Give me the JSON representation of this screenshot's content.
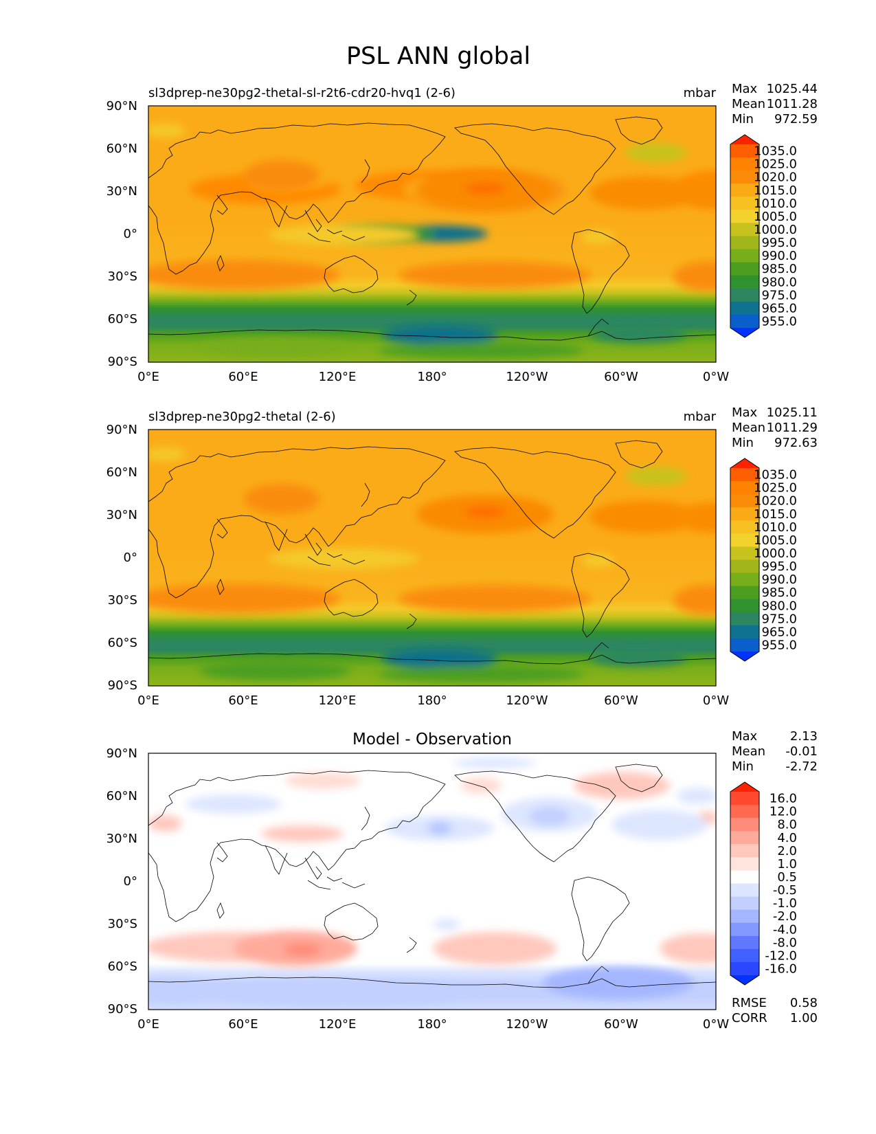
{
  "title": "PSL ANN global",
  "axes": {
    "lat_labels": [
      "90°N",
      "60°N",
      "30°N",
      "0°",
      "30°S",
      "60°S",
      "90°S"
    ],
    "lon_labels": [
      "0°E",
      "60°E",
      "120°E",
      "180°",
      "120°W",
      "60°W",
      "0°W"
    ]
  },
  "panels": [
    {
      "title": "sl3dprep-ne30pg2-thetal-sl-r2t6-cdr20-hvq1 (2-6)",
      "units": "mbar",
      "stats": [
        {
          "label": "Max",
          "value": "1025.44"
        },
        {
          "label": "Mean",
          "value": "1011.28"
        },
        {
          "label": "Min",
          "value": "972.59"
        }
      ],
      "colorbar": {
        "labels": [
          "1035.0",
          "1025.0",
          "1020.0",
          "1015.0",
          "1010.0",
          "1005.0",
          "1000.0",
          "995.0",
          "990.0",
          "985.0",
          "980.0",
          "975.0",
          "965.0",
          "955.0"
        ],
        "colors": [
          "#ff2200",
          "#ff5f00",
          "#ff8200",
          "#fa8c0a",
          "#fbaa17",
          "#f7c221",
          "#f2d22d",
          "#c8c21e",
          "#a0b61b",
          "#78ae1a",
          "#4c9e20",
          "#30922e",
          "#2c8660",
          "#0d7390",
          "#0a5fcc",
          "#0033ff"
        ]
      }
    },
    {
      "title": "sl3dprep-ne30pg2-thetal (2-6)",
      "units": "mbar",
      "stats": [
        {
          "label": "Max",
          "value": "1025.11"
        },
        {
          "label": "Mean",
          "value": "1011.29"
        },
        {
          "label": "Min",
          "value": "972.63"
        }
      ],
      "colorbar": {
        "labels": [
          "1035.0",
          "1025.0",
          "1020.0",
          "1015.0",
          "1010.0",
          "1005.0",
          "1000.0",
          "995.0",
          "990.0",
          "985.0",
          "980.0",
          "975.0",
          "965.0",
          "955.0"
        ],
        "colors": [
          "#ff2200",
          "#ff5f00",
          "#ff8200",
          "#fa8c0a",
          "#fbaa17",
          "#f7c221",
          "#f2d22d",
          "#c8c21e",
          "#a0b61b",
          "#78ae1a",
          "#4c9e20",
          "#30922e",
          "#2c8660",
          "#0d7390",
          "#0a5fcc",
          "#0033ff"
        ]
      }
    },
    {
      "title": "Model - Observation",
      "units": "",
      "stats": [
        {
          "label": "Max",
          "value": "2.13"
        },
        {
          "label": "Mean",
          "value": "-0.01"
        },
        {
          "label": "Min",
          "value": "-2.72"
        }
      ],
      "extra_stats": [
        {
          "label": "RMSE",
          "value": "0.58"
        },
        {
          "label": "CORR",
          "value": "1.00"
        }
      ],
      "colorbar": {
        "labels": [
          "16.0",
          "12.0",
          "8.0",
          "4.0",
          "2.0",
          "1.0",
          "0.5",
          "-0.5",
          "-1.0",
          "-2.0",
          "-4.0",
          "-8.0",
          "-12.0",
          "-16.0"
        ],
        "colors": [
          "#ff2200",
          "#ff4a30",
          "#ff6a50",
          "#ff8c78",
          "#ffab9c",
          "#ffc8bd",
          "#ffe3dc",
          "#ffffff",
          "#dde6ff",
          "#c2d0ff",
          "#a4b6ff",
          "#8399ff",
          "#6078ff",
          "#4060ff",
          "#2a48ff",
          "#0033ff"
        ]
      }
    }
  ]
}
